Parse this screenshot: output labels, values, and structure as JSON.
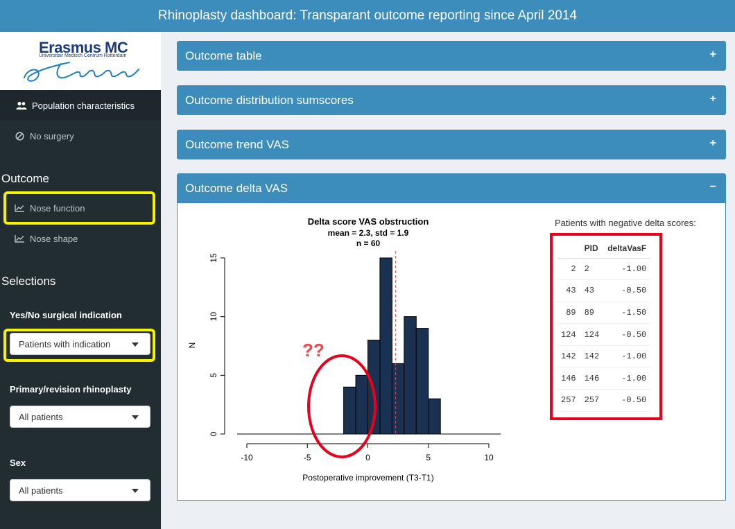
{
  "header": {
    "title": "Rhinoplasty dashboard: Transparant outcome reporting since April 2014"
  },
  "logo": {
    "name": "Erasmus MC",
    "subtitle": "Universitair Medisch Centrum Rotterdam"
  },
  "sidebar": {
    "items": [
      {
        "label": "Population characteristics",
        "icon": "users-icon"
      },
      {
        "label": "No surgery",
        "icon": "ban-icon"
      }
    ],
    "outcome_title": "Outcome",
    "outcome_items": [
      {
        "label": "Nose function",
        "icon": "line-chart-icon"
      },
      {
        "label": "Nose shape",
        "icon": "line-chart-icon"
      }
    ],
    "selections_title": "Selections",
    "filters": [
      {
        "label": "Yes/No surgical indication",
        "value": "Patients with indication"
      },
      {
        "label": "Primary/revision rhinoplasty",
        "value": "All patients"
      },
      {
        "label": "Sex",
        "value": "All patients"
      }
    ]
  },
  "boxes": [
    {
      "title": "Outcome table",
      "tool": "+"
    },
    {
      "title": "Outcome distribution sumscores",
      "tool": "+"
    },
    {
      "title": "Outcome trend VAS",
      "tool": "+"
    },
    {
      "title": "Outcome delta VAS",
      "tool": "−"
    }
  ],
  "annotation": {
    "text": "??"
  },
  "chart_data": {
    "type": "bar",
    "title": "Delta score VAS obstruction",
    "subtitle_1": "mean = 2.3, std  = 1.9",
    "subtitle_2": "n = 60",
    "xlabel": "Postoperative improvement (T3-T1)",
    "ylabel": "N",
    "xlim": [
      -10,
      10
    ],
    "ylim": [
      0,
      15
    ],
    "x_ticks": [
      "-10",
      "-5",
      "0",
      "5",
      "10"
    ],
    "y_ticks": [
      "0",
      "5",
      "10",
      "15"
    ],
    "bins": [
      {
        "x0": -2,
        "x1": -1,
        "count": 4
      },
      {
        "x0": -1,
        "x1": 0,
        "count": 5
      },
      {
        "x0": 0,
        "x1": 1,
        "count": 8
      },
      {
        "x0": 1,
        "x1": 2,
        "count": 15
      },
      {
        "x0": 2,
        "x1": 3,
        "count": 6
      },
      {
        "x0": 3,
        "x1": 4,
        "count": 10
      },
      {
        "x0": 4,
        "x1": 5,
        "count": 9
      },
      {
        "x0": 5,
        "x1": 6,
        "count": 3
      }
    ],
    "mean_line": 2.3,
    "bar_color": "#1b3151",
    "mean_color": "#d9534f"
  },
  "negative_table": {
    "title": "Patients with negative delta scores:",
    "headers": [
      "",
      "PID",
      "deltaVasF"
    ],
    "rows": [
      [
        "2",
        "2",
        "-1.00"
      ],
      [
        "43",
        "43",
        "-0.50"
      ],
      [
        "89",
        "89",
        "-1.50"
      ],
      [
        "124",
        "124",
        "-0.50"
      ],
      [
        "142",
        "142",
        "-1.00"
      ],
      [
        "146",
        "146",
        "-1.00"
      ],
      [
        "257",
        "257",
        "-0.50"
      ]
    ]
  }
}
